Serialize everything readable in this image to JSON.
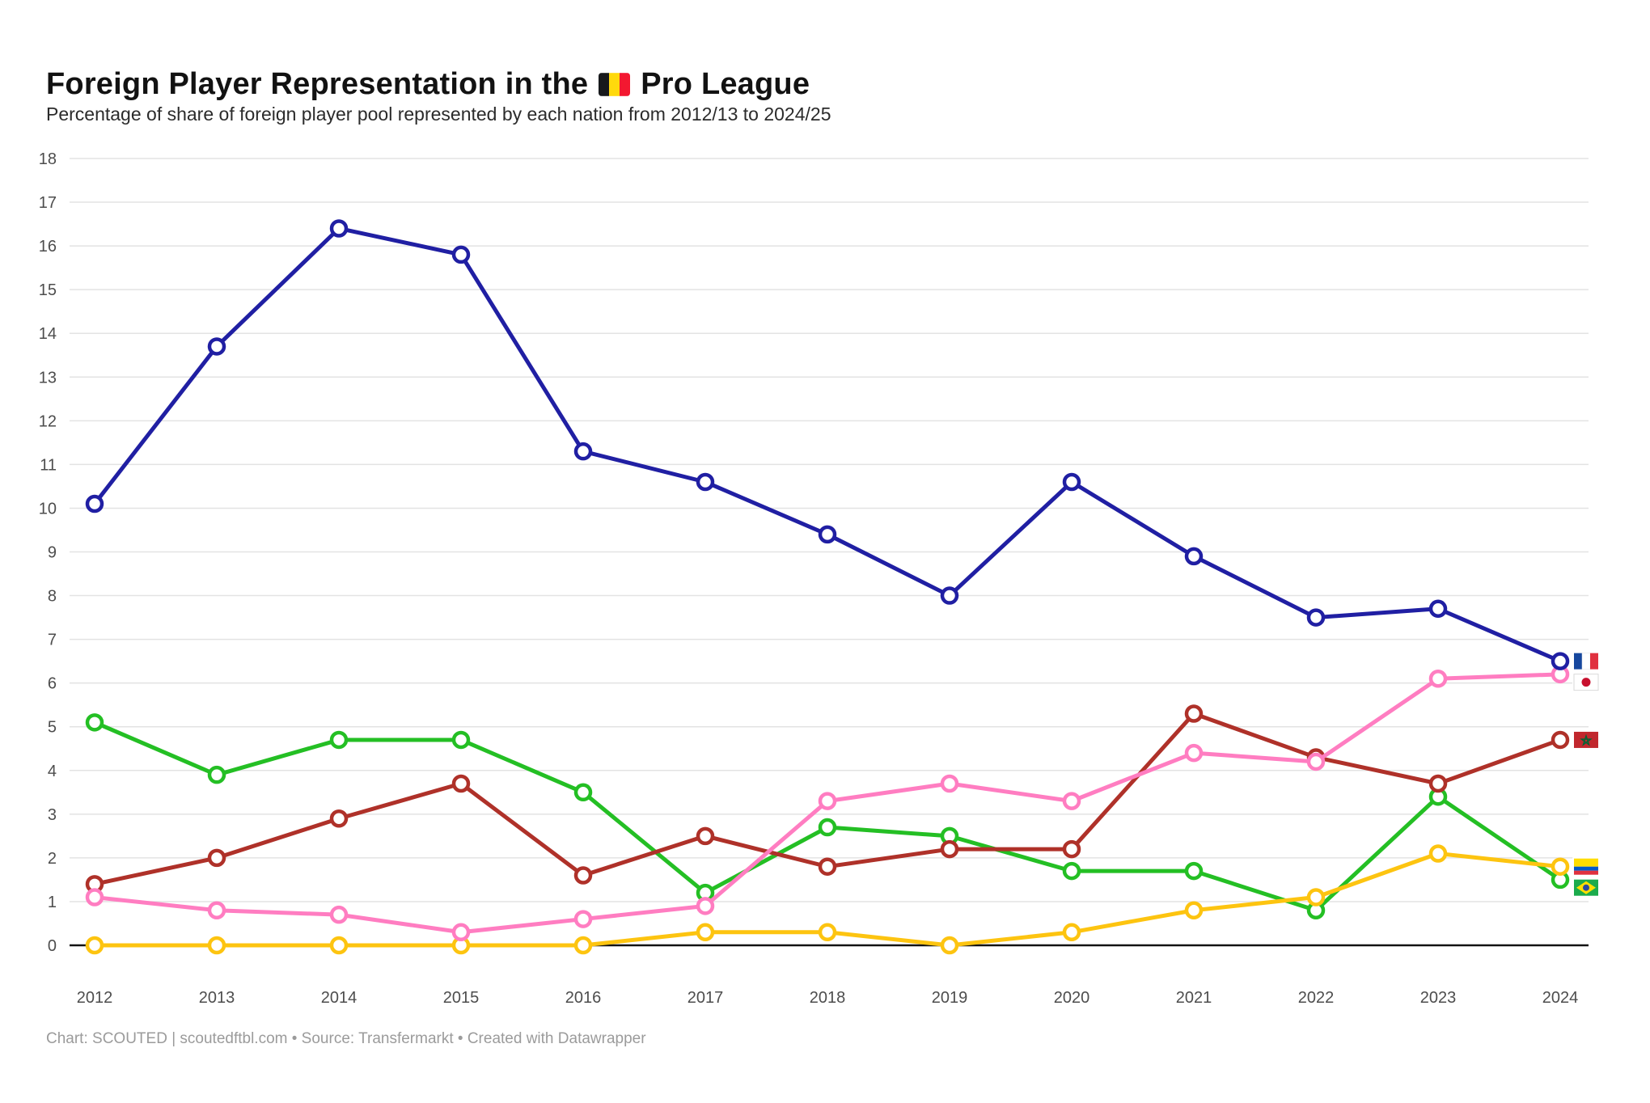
{
  "header": {
    "title_before_flag": "Foreign Player Representation in the",
    "title_after_flag": "Pro League",
    "title_flag_icon": "belgium-flag-icon",
    "subtitle": "Percentage of share of foreign player pool represented by each nation from 2012/13 to 2024/25"
  },
  "footer": {
    "text": "Chart: SCOUTED | scoutedftbl.com • Source: Transfermarkt • Created with Datawrapper"
  },
  "colors": {
    "grid": "#e3e3e3",
    "axis_zero_line": "#121212",
    "tick_label": "#4d4d4d",
    "background": "#ffffff"
  },
  "chart_data": {
    "type": "line",
    "title": "Foreign Player Representation in the (Belgium) Pro League",
    "subtitle": "Percentage of share of foreign player pool represented by each nation from 2012/13 to 2024/25",
    "xlabel": "",
    "ylabel": "",
    "x": [
      2012,
      2013,
      2014,
      2015,
      2016,
      2017,
      2018,
      2019,
      2020,
      2021,
      2022,
      2023,
      2024
    ],
    "ylim": [
      0,
      18
    ],
    "ytick_step": 1,
    "grid": true,
    "legend": "flag icons at line ends (right side)",
    "marker_style": "open circles, white fill, colored ring",
    "series": [
      {
        "name": "France",
        "flag": "france",
        "color": "#201fa3",
        "values": [
          10.1,
          13.7,
          16.4,
          15.8,
          11.3,
          10.6,
          9.4,
          8.0,
          10.6,
          8.9,
          7.5,
          7.7,
          6.5
        ]
      },
      {
        "name": "Japan",
        "flag": "japan",
        "color": "#ff7dc1",
        "values": [
          1.1,
          0.8,
          0.7,
          0.3,
          0.6,
          0.9,
          3.3,
          3.7,
          3.3,
          4.4,
          4.2,
          6.1,
          6.2
        ]
      },
      {
        "name": "Morocco",
        "flag": "morocco",
        "color": "#af3129",
        "values": [
          1.4,
          2.0,
          2.9,
          3.7,
          1.6,
          2.5,
          1.8,
          2.2,
          2.2,
          5.3,
          4.3,
          3.7,
          4.7
        ]
      },
      {
        "name": "Ecuador",
        "flag": "ecuador",
        "color": "#fdc410",
        "values": [
          0.0,
          0.0,
          0.0,
          0.0,
          0.0,
          0.3,
          0.3,
          0.0,
          0.3,
          0.8,
          1.1,
          2.1,
          1.8
        ]
      },
      {
        "name": "Brazil",
        "flag": "brazil",
        "color": "#24bf24",
        "values": [
          5.1,
          3.9,
          4.7,
          4.7,
          3.5,
          1.2,
          2.7,
          2.5,
          1.7,
          1.7,
          0.8,
          3.4,
          1.5
        ]
      }
    ]
  }
}
